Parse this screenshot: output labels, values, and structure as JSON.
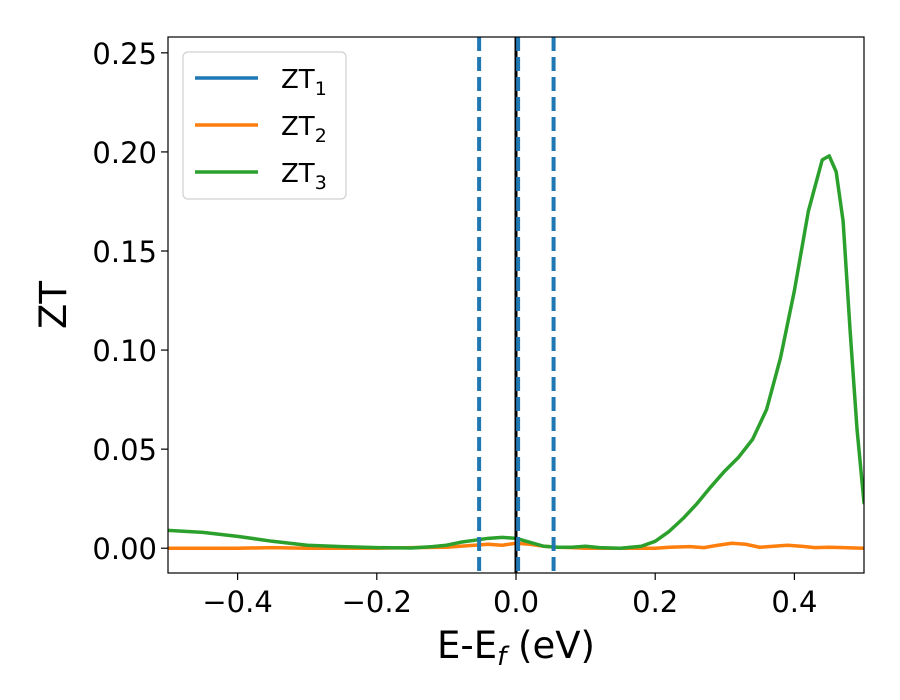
{
  "chart_data": {
    "type": "line",
    "title": "",
    "xlabel": {
      "main": "E-E",
      "sub": "f",
      "suffix": " (eV)"
    },
    "ylabel": "ZT",
    "xlim": [
      -0.5,
      0.5
    ],
    "ylim": [
      -0.0125,
      0.258
    ],
    "xticks": [
      -0.4,
      -0.2,
      0.0,
      0.2,
      0.4
    ],
    "xtick_labels": [
      "−0.4",
      "−0.2",
      "0.0",
      "0.2",
      "0.4"
    ],
    "yticks": [
      0.0,
      0.05,
      0.1,
      0.15,
      0.2,
      0.25
    ],
    "ytick_labels": [
      "0.00",
      "0.05",
      "0.10",
      "0.15",
      "0.20",
      "0.25"
    ],
    "grid": false,
    "legend_position": "top-left",
    "series": [
      {
        "name": "ZT",
        "subscript": "1",
        "color": "#1f77b4",
        "x": [],
        "y": []
      },
      {
        "name": "ZT",
        "subscript": "2",
        "color": "#ff7f0e",
        "x": [
          -0.5,
          -0.45,
          -0.4,
          -0.35,
          -0.3,
          -0.25,
          -0.2,
          -0.15,
          -0.1,
          -0.08,
          -0.06,
          -0.04,
          -0.02,
          0.0,
          0.02,
          0.04,
          0.06,
          0.08,
          0.1,
          0.12,
          0.15,
          0.18,
          0.2,
          0.22,
          0.25,
          0.27,
          0.29,
          0.31,
          0.33,
          0.35,
          0.37,
          0.39,
          0.41,
          0.43,
          0.45,
          0.47,
          0.5
        ],
        "y": [
          0.0,
          0.0,
          0.0,
          0.0003,
          0.0,
          0.0,
          0.0,
          0.0003,
          0.0005,
          0.001,
          0.0015,
          0.002,
          0.0015,
          0.0025,
          0.002,
          0.001,
          0.0005,
          0.0003,
          0.0,
          0.0,
          0.0,
          0.0,
          0.0,
          0.0005,
          0.0008,
          0.0003,
          0.0015,
          0.0025,
          0.002,
          0.0005,
          0.001,
          0.0015,
          0.001,
          0.0003,
          0.0005,
          0.0003,
          0.0
        ]
      },
      {
        "name": "ZT",
        "subscript": "3",
        "color": "#2ca02c",
        "x": [
          -0.5,
          -0.45,
          -0.4,
          -0.35,
          -0.3,
          -0.25,
          -0.2,
          -0.15,
          -0.12,
          -0.1,
          -0.08,
          -0.06,
          -0.04,
          -0.02,
          0.0,
          0.02,
          0.04,
          0.06,
          0.08,
          0.1,
          0.12,
          0.15,
          0.18,
          0.2,
          0.22,
          0.24,
          0.26,
          0.28,
          0.3,
          0.32,
          0.34,
          0.36,
          0.38,
          0.4,
          0.42,
          0.44,
          0.45,
          0.46,
          0.47,
          0.48,
          0.49,
          0.5
        ],
        "y": [
          0.009,
          0.008,
          0.006,
          0.0035,
          0.0015,
          0.0008,
          0.0003,
          0.0001,
          0.0008,
          0.0015,
          0.003,
          0.004,
          0.005,
          0.0055,
          0.005,
          0.003,
          0.001,
          0.0005,
          0.0005,
          0.001,
          0.0003,
          0.0,
          0.001,
          0.0035,
          0.0085,
          0.015,
          0.0225,
          0.031,
          0.039,
          0.046,
          0.055,
          0.07,
          0.096,
          0.13,
          0.17,
          0.196,
          0.198,
          0.19,
          0.165,
          0.11,
          0.06,
          0.023
        ]
      }
    ],
    "vertical_lines": [
      {
        "x": 0.0,
        "style": "solid",
        "color": "#000000"
      },
      {
        "x": -0.053,
        "style": "dashed",
        "color": "#1f77b4"
      },
      {
        "x": 0.003,
        "style": "dashed",
        "color": "#1f77b4"
      },
      {
        "x": 0.054,
        "style": "dashed",
        "color": "#1f77b4"
      }
    ]
  }
}
